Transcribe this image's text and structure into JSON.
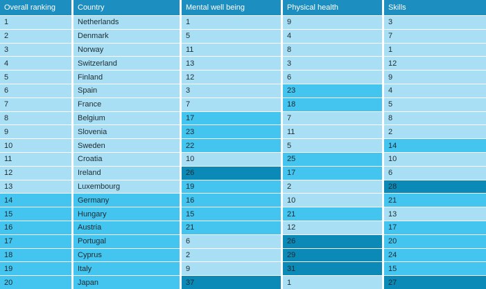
{
  "table": {
    "header_color": "#1c8ec0",
    "header": [
      "Overall ranking",
      "Country",
      "Mental well being",
      "Physical health",
      "Skills"
    ],
    "rows": [
      {
        "cells": [
          1,
          "Netherlands",
          1,
          9,
          3
        ],
        "colors": [
          "#a9dff5",
          "#a9dff5",
          "#a9dff5",
          "#a9dff5",
          "#a9dff5"
        ]
      },
      {
        "cells": [
          2,
          "Denmark",
          5,
          4,
          7
        ],
        "colors": [
          "#a9dff5",
          "#a9dff5",
          "#a9dff5",
          "#a9dff5",
          "#a9dff5"
        ]
      },
      {
        "cells": [
          3,
          "Norway",
          11,
          8,
          1
        ],
        "colors": [
          "#a9dff5",
          "#a9dff5",
          "#a9dff5",
          "#a9dff5",
          "#a9dff5"
        ]
      },
      {
        "cells": [
          4,
          "Switzerland",
          13,
          3,
          12
        ],
        "colors": [
          "#a9dff5",
          "#a9dff5",
          "#a9dff5",
          "#a9dff5",
          "#a9dff5"
        ]
      },
      {
        "cells": [
          5,
          "Finland",
          12,
          6,
          9
        ],
        "colors": [
          "#a9dff5",
          "#a9dff5",
          "#a9dff5",
          "#a9dff5",
          "#a9dff5"
        ]
      },
      {
        "cells": [
          6,
          "Spain",
          3,
          23,
          4
        ],
        "colors": [
          "#a9dff5",
          "#a9dff5",
          "#a9dff5",
          "#43c5f0",
          "#a9dff5"
        ]
      },
      {
        "cells": [
          7,
          "France",
          7,
          18,
          5
        ],
        "colors": [
          "#a9dff5",
          "#a9dff5",
          "#a9dff5",
          "#43c5f0",
          "#a9dff5"
        ]
      },
      {
        "cells": [
          8,
          "Belgium",
          17,
          7,
          8
        ],
        "colors": [
          "#a9dff5",
          "#a9dff5",
          "#43c5f0",
          "#a9dff5",
          "#a9dff5"
        ]
      },
      {
        "cells": [
          9,
          "Slovenia",
          23,
          11,
          2
        ],
        "colors": [
          "#a9dff5",
          "#a9dff5",
          "#43c5f0",
          "#a9dff5",
          "#a9dff5"
        ]
      },
      {
        "cells": [
          10,
          "Sweden",
          22,
          5,
          14
        ],
        "colors": [
          "#a9dff5",
          "#a9dff5",
          "#43c5f0",
          "#a9dff5",
          "#43c5f0"
        ]
      },
      {
        "cells": [
          11,
          "Croatia",
          10,
          25,
          10
        ],
        "colors": [
          "#a9dff5",
          "#a9dff5",
          "#a9dff5",
          "#43c5f0",
          "#a9dff5"
        ]
      },
      {
        "cells": [
          12,
          "Ireland",
          26,
          17,
          6
        ],
        "colors": [
          "#a9dff5",
          "#a9dff5",
          "#0b8ab8",
          "#43c5f0",
          "#a9dff5"
        ]
      },
      {
        "cells": [
          13,
          "Luxembourg",
          19,
          2,
          28
        ],
        "colors": [
          "#a9dff5",
          "#a9dff5",
          "#43c5f0",
          "#a9dff5",
          "#0b8ab8"
        ]
      },
      {
        "cells": [
          14,
          "Germany",
          16,
          10,
          21
        ],
        "colors": [
          "#43c5f0",
          "#43c5f0",
          "#43c5f0",
          "#a9dff5",
          "#43c5f0"
        ]
      },
      {
        "cells": [
          15,
          "Hungary",
          15,
          21,
          13
        ],
        "colors": [
          "#43c5f0",
          "#43c5f0",
          "#43c5f0",
          "#43c5f0",
          "#a9dff5"
        ]
      },
      {
        "cells": [
          16,
          "Austria",
          21,
          12,
          17
        ],
        "colors": [
          "#43c5f0",
          "#43c5f0",
          "#43c5f0",
          "#a9dff5",
          "#43c5f0"
        ]
      },
      {
        "cells": [
          17,
          "Portugal",
          6,
          26,
          20
        ],
        "colors": [
          "#43c5f0",
          "#43c5f0",
          "#a9dff5",
          "#0b8ab8",
          "#43c5f0"
        ]
      },
      {
        "cells": [
          18,
          "Cyprus",
          2,
          29,
          24
        ],
        "colors": [
          "#43c5f0",
          "#43c5f0",
          "#a9dff5",
          "#0b8ab8",
          "#43c5f0"
        ]
      },
      {
        "cells": [
          19,
          "Italy",
          9,
          31,
          15
        ],
        "colors": [
          "#43c5f0",
          "#43c5f0",
          "#a9dff5",
          "#0b8ab8",
          "#43c5f0"
        ]
      },
      {
        "cells": [
          20,
          "Japan",
          37,
          1,
          27
        ],
        "colors": [
          "#43c5f0",
          "#43c5f0",
          "#0b8ab8",
          "#a9dff5",
          "#0b8ab8"
        ]
      }
    ]
  }
}
